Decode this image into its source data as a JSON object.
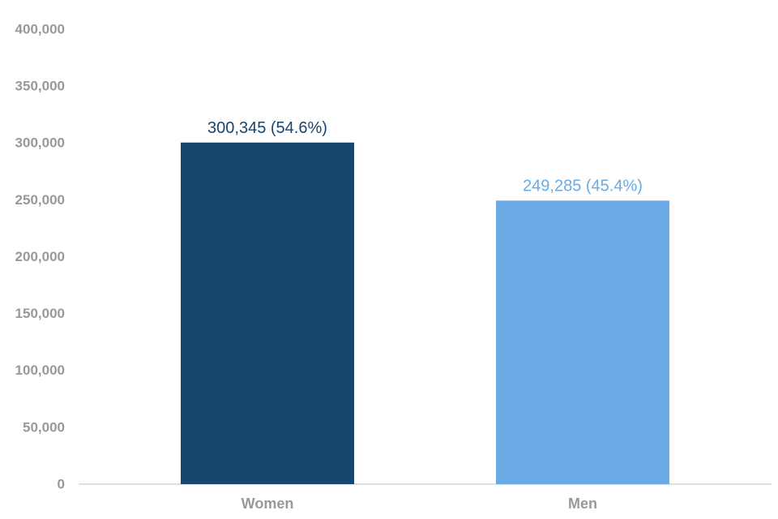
{
  "chart_data": {
    "type": "bar",
    "categories": [
      "Women",
      "Men"
    ],
    "values": [
      300345,
      249285
    ],
    "value_labels": [
      "300,345 (54.6%)",
      "249,285 (45.4%)"
    ],
    "colors": [
      "#17456e",
      "#6aabe5"
    ],
    "ylim": [
      0,
      400000
    ],
    "yticks": [
      0,
      {
        "value": 50000,
        "label": "50,000"
      },
      {
        "value": 100000,
        "label": "100,000"
      },
      {
        "value": 150000,
        "label": "150,000"
      },
      {
        "value": 200000,
        "label": "200,000"
      },
      {
        "value": 250000,
        "label": "250,000"
      },
      {
        "value": 300000,
        "label": "300,000"
      },
      {
        "value": 350000,
        "label": "350,000"
      },
      {
        "value": 400000,
        "label": "400,000"
      }
    ],
    "grid": false
  }
}
